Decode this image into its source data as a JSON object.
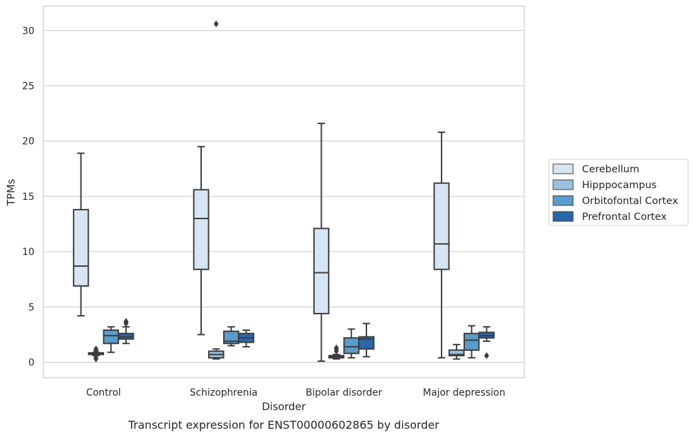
{
  "chart_data": {
    "type": "box",
    "xlabel": "Disorder",
    "ylabel": "TPMs",
    "caption": "Transcript expression for ENST00000602865 by disorder",
    "ylim": [
      -1.4,
      32.2
    ],
    "yticks": [
      0,
      5,
      10,
      15,
      20,
      25,
      30
    ],
    "grid": "horizontal",
    "legend_position": "center-right",
    "categories": [
      "Control",
      "Schizophrenia",
      "Bipolar disorder",
      "Major depression"
    ],
    "series": [
      {
        "name": "Cerebellum",
        "color": "#d6e5f3",
        "boxes": [
          {
            "whisker_low": 4.2,
            "q1": 6.9,
            "median": 8.7,
            "q3": 13.8,
            "whisker_high": 18.9,
            "outliers": []
          },
          {
            "whisker_low": 2.5,
            "q1": 8.4,
            "median": 13.0,
            "q3": 15.6,
            "whisker_high": 19.5,
            "outliers": []
          },
          {
            "whisker_low": 0.1,
            "q1": 4.4,
            "median": 8.1,
            "q3": 12.1,
            "whisker_high": 21.6,
            "outliers": []
          },
          {
            "whisker_low": 0.4,
            "q1": 8.4,
            "median": 10.7,
            "q3": 16.2,
            "whisker_high": 20.8,
            "outliers": []
          }
        ]
      },
      {
        "name": "Hipppocampus",
        "color": "#9ac1dd",
        "boxes": [
          {
            "whisker_low": 0.6,
            "q1": 0.7,
            "median": 0.8,
            "q3": 0.85,
            "whisker_high": 0.9,
            "outliers": [
              0.3,
              0.4,
              1.0,
              1.1,
              1.2
            ]
          },
          {
            "whisker_low": 0.3,
            "q1": 0.4,
            "median": 0.7,
            "q3": 1.0,
            "whisker_high": 1.2,
            "outliers": [
              30.6
            ]
          },
          {
            "whisker_low": 0.3,
            "q1": 0.4,
            "median": 0.5,
            "q3": 0.6,
            "whisker_high": 0.7,
            "outliers": [
              1.0,
              1.2,
              1.3
            ]
          },
          {
            "whisker_low": 0.3,
            "q1": 0.6,
            "median": 0.7,
            "q3": 1.1,
            "whisker_high": 1.6,
            "outliers": []
          }
        ]
      },
      {
        "name": "Orbitofontal Cortex",
        "color": "#5a9ccb",
        "boxes": [
          {
            "whisker_low": 0.9,
            "q1": 1.7,
            "median": 2.4,
            "q3": 2.9,
            "whisker_high": 3.2,
            "outliers": []
          },
          {
            "whisker_low": 1.5,
            "q1": 1.7,
            "median": 1.9,
            "q3": 2.8,
            "whisker_high": 3.2,
            "outliers": []
          },
          {
            "whisker_low": 0.4,
            "q1": 0.8,
            "median": 1.4,
            "q3": 2.2,
            "whisker_high": 3.0,
            "outliers": []
          },
          {
            "whisker_low": 0.4,
            "q1": 1.1,
            "median": 2.0,
            "q3": 2.6,
            "whisker_high": 3.3,
            "outliers": []
          }
        ]
      },
      {
        "name": "Prefrontal Cortex",
        "color": "#2868a9",
        "boxes": [
          {
            "whisker_low": 1.7,
            "q1": 2.1,
            "median": 2.3,
            "q3": 2.6,
            "whisker_high": 3.2,
            "outliers": [
              3.5,
              3.6,
              3.7
            ]
          },
          {
            "whisker_low": 1.4,
            "q1": 1.8,
            "median": 2.2,
            "q3": 2.6,
            "whisker_high": 2.9,
            "outliers": []
          },
          {
            "whisker_low": 0.5,
            "q1": 1.2,
            "median": 2.1,
            "q3": 2.3,
            "whisker_high": 3.5,
            "outliers": []
          },
          {
            "whisker_low": 1.9,
            "q1": 2.2,
            "median": 2.4,
            "q3": 2.7,
            "whisker_high": 3.2,
            "outliers": [
              0.6
            ]
          }
        ]
      }
    ]
  }
}
